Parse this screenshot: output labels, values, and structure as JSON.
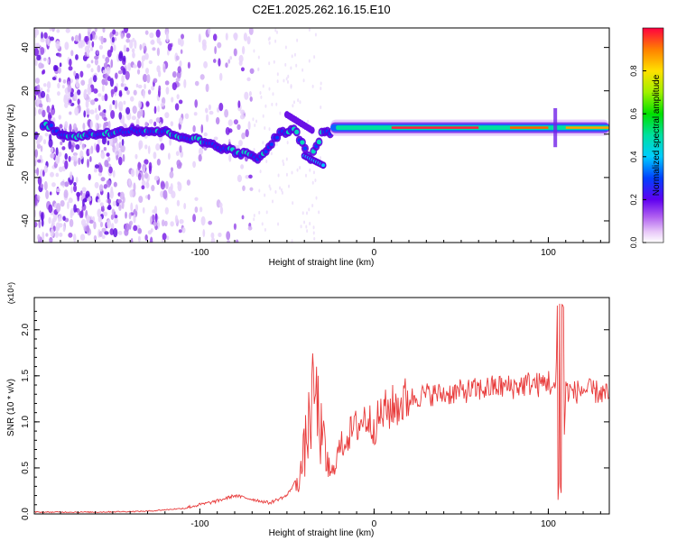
{
  "title": "C2E1.2025.262.16.15.E10",
  "chart_data": [
    {
      "type": "heatmap",
      "xlabel": "Height of straight line (km)",
      "ylabel": "Frequency (Hz)",
      "xlim": [
        -195,
        135
      ],
      "ylim": [
        -50,
        49
      ],
      "xticks": [
        -100,
        0,
        100
      ],
      "yticks": [
        -40,
        -20,
        0,
        20,
        40
      ],
      "colorbar": {
        "label": "Normalized spectral amplitude",
        "range": [
          0,
          1
        ],
        "ticks": [
          "0.0",
          "0.2",
          "0.4",
          "0.6",
          "0.8"
        ],
        "tick_values": [
          0,
          0.2,
          0.4,
          0.6,
          0.8
        ]
      },
      "trace": [
        {
          "x": -185,
          "y": 1
        },
        {
          "x": -170,
          "y": -1
        },
        {
          "x": -140,
          "y": 2
        },
        {
          "x": -120,
          "y": 1
        },
        {
          "x": -100,
          "y": -3
        },
        {
          "x": -80,
          "y": -8
        },
        {
          "x": -65,
          "y": -11
        },
        {
          "x": -55,
          "y": 0
        },
        {
          "x": -45,
          "y": 2
        },
        {
          "x": -37,
          "y": -12
        },
        {
          "x": -30,
          "y": 0
        },
        {
          "x": -20,
          "y": 2
        },
        {
          "x": 0,
          "y": 3
        },
        {
          "x": 50,
          "y": 3
        },
        {
          "x": 100,
          "y": 4
        },
        {
          "x": 135,
          "y": 4
        }
      ]
    },
    {
      "type": "line",
      "xlabel": "Height of straight line (km)",
      "ylabel": "SNR (10 * v/v)",
      "y_multiplier": "(x10⁴)",
      "xlim": [
        -195,
        135
      ],
      "ylim": [
        0,
        2.35
      ],
      "xticks": [
        -100,
        0,
        100
      ],
      "yticks": [
        "0.0",
        "0.5",
        "1.0",
        "1.5",
        "2.0"
      ],
      "ytick_values": [
        0,
        0.5,
        1.0,
        1.5,
        2.0
      ],
      "series": [
        {
          "name": "SNR",
          "color": "#e83a3a",
          "x": [
            -195,
            -160,
            -130,
            -110,
            -100,
            -90,
            -80,
            -70,
            -60,
            -50,
            -42,
            -38,
            -34,
            -30,
            -25,
            -20,
            -15,
            -10,
            -5,
            0,
            5,
            10,
            20,
            30,
            40,
            50,
            60,
            70,
            80,
            90,
            95,
            100,
            104,
            106,
            108,
            110,
            115,
            120,
            125,
            130,
            135
          ],
          "values": [
            0.02,
            0.02,
            0.03,
            0.06,
            0.1,
            0.14,
            0.2,
            0.16,
            0.12,
            0.2,
            0.45,
            0.9,
            1.35,
            0.8,
            0.4,
            0.7,
            0.85,
            0.95,
            1.05,
            0.95,
            1.1,
            1.15,
            1.25,
            1.3,
            1.3,
            1.33,
            1.35,
            1.38,
            1.38,
            1.42,
            1.4,
            1.45,
            1.3,
            2.35,
            0.12,
            1.35,
            1.32,
            1.35,
            1.33,
            1.32,
            1.28
          ]
        }
      ]
    }
  ]
}
